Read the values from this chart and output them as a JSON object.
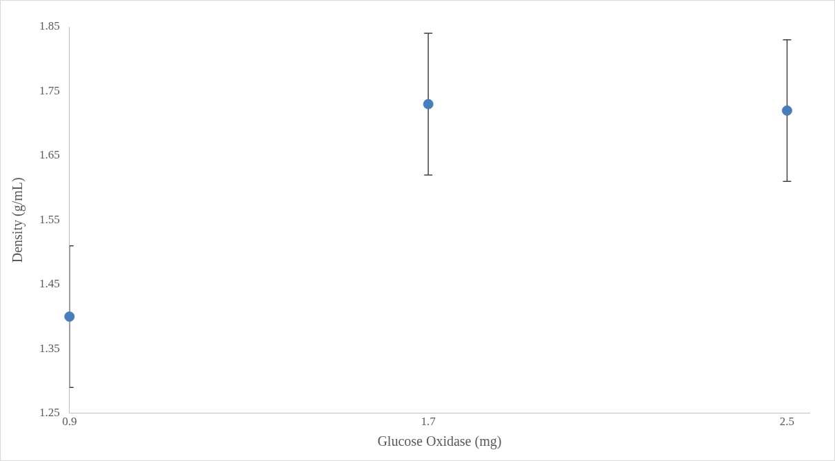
{
  "chart_data": {
    "type": "scatter",
    "xlabel": "Glucose Oxidase (mg)",
    "ylabel": "Density (g/mL)",
    "x": [
      0.9,
      1.7,
      2.5
    ],
    "series": [
      {
        "color": "#4a7ebb",
        "values": [
          1.4,
          1.73,
          1.72
        ],
        "errors": [
          0.11,
          0.11,
          0.11
        ]
      }
    ],
    "xlim": [
      0.9,
      2.55
    ],
    "xticks": [
      0.9,
      1.7,
      2.5
    ],
    "ylim": [
      1.25,
      1.85
    ],
    "yticks": [
      1.25,
      1.35,
      1.45,
      1.55,
      1.65,
      1.75,
      1.85
    ],
    "grid": false,
    "legend": false,
    "marker": "circle"
  }
}
